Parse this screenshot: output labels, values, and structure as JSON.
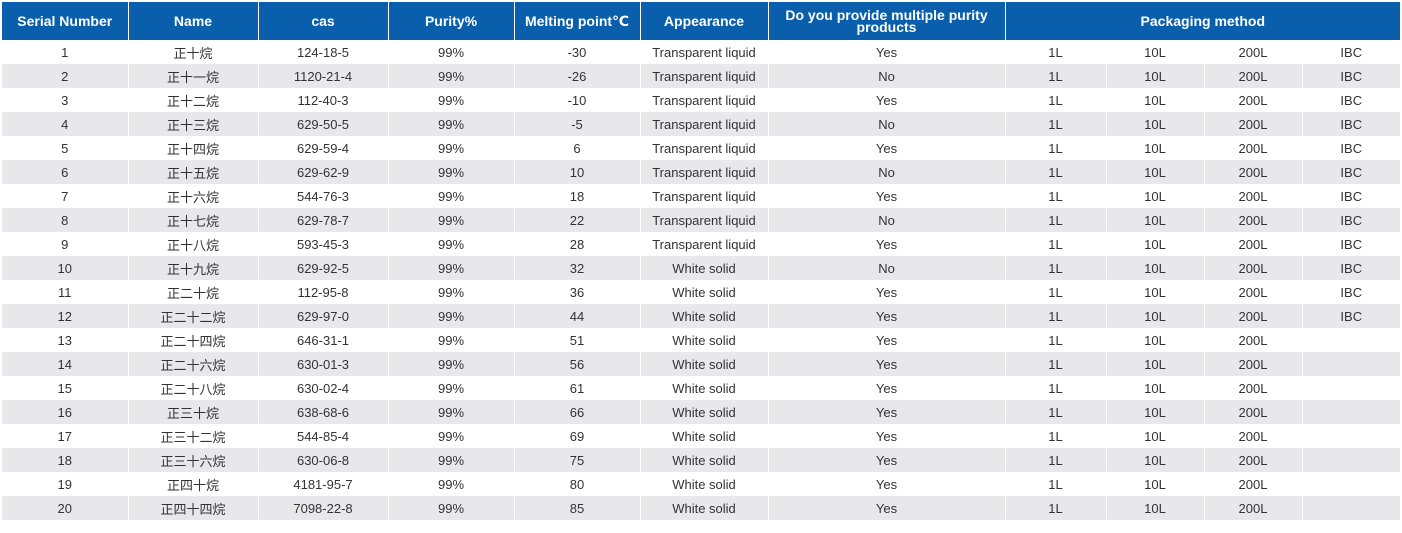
{
  "table": {
    "headers": [
      "Serial Number",
      "Name",
      "cas",
      "Purity%",
      "Melting point℃",
      "Appearance",
      "Do you provide multiple purity products",
      "Packaging method"
    ],
    "header_color": "#0a5fad",
    "stripe_color": "#e8e8ea",
    "rows": [
      {
        "serial": "1",
        "name": "正十烷",
        "cas": "124-18-5",
        "purity": "99%",
        "melting": "-30",
        "appearance": "Transparent liquid",
        "multi": "Yes",
        "pk": [
          "1L",
          "10L",
          "200L",
          "IBC"
        ]
      },
      {
        "serial": "2",
        "name": "正十一烷",
        "cas": "1120-21-4",
        "purity": "99%",
        "melting": "-26",
        "appearance": "Transparent liquid",
        "multi": "No",
        "pk": [
          "1L",
          "10L",
          "200L",
          "IBC"
        ]
      },
      {
        "serial": "3",
        "name": "正十二烷",
        "cas": "112-40-3",
        "purity": "99%",
        "melting": "-10",
        "appearance": "Transparent liquid",
        "multi": "Yes",
        "pk": [
          "1L",
          "10L",
          "200L",
          "IBC"
        ]
      },
      {
        "serial": "4",
        "name": "正十三烷",
        "cas": "629-50-5",
        "purity": "99%",
        "melting": "-5",
        "appearance": "Transparent liquid",
        "multi": "No",
        "pk": [
          "1L",
          "10L",
          "200L",
          "IBC"
        ]
      },
      {
        "serial": "5",
        "name": "正十四烷",
        "cas": "629-59-4",
        "purity": "99%",
        "melting": "6",
        "appearance": "Transparent liquid",
        "multi": "Yes",
        "pk": [
          "1L",
          "10L",
          "200L",
          "IBC"
        ]
      },
      {
        "serial": "6",
        "name": "正十五烷",
        "cas": "629-62-9",
        "purity": "99%",
        "melting": "10",
        "appearance": "Transparent liquid",
        "multi": "No",
        "pk": [
          "1L",
          "10L",
          "200L",
          "IBC"
        ]
      },
      {
        "serial": "7",
        "name": "正十六烷",
        "cas": "544-76-3",
        "purity": "99%",
        "melting": "18",
        "appearance": "Transparent liquid",
        "multi": "Yes",
        "pk": [
          "1L",
          "10L",
          "200L",
          "IBC"
        ]
      },
      {
        "serial": "8",
        "name": "正十七烷",
        "cas": "629-78-7",
        "purity": "99%",
        "melting": "22",
        "appearance": "Transparent liquid",
        "multi": "No",
        "pk": [
          "1L",
          "10L",
          "200L",
          "IBC"
        ]
      },
      {
        "serial": "9",
        "name": "正十八烷",
        "cas": "593-45-3",
        "purity": "99%",
        "melting": "28",
        "appearance": "Transparent liquid",
        "multi": "Yes",
        "pk": [
          "1L",
          "10L",
          "200L",
          "IBC"
        ]
      },
      {
        "serial": "10",
        "name": "正十九烷",
        "cas": "629-92-5",
        "purity": "99%",
        "melting": "32",
        "appearance": "White solid",
        "multi": "No",
        "pk": [
          "1L",
          "10L",
          "200L",
          "IBC"
        ]
      },
      {
        "serial": "11",
        "name": "正二十烷",
        "cas": "112-95-8",
        "purity": "99%",
        "melting": "36",
        "appearance": "White solid",
        "multi": "Yes",
        "pk": [
          "1L",
          "10L",
          "200L",
          "IBC"
        ]
      },
      {
        "serial": "12",
        "name": "正二十二烷",
        "cas": "629-97-0",
        "purity": "99%",
        "melting": "44",
        "appearance": "White solid",
        "multi": "Yes",
        "pk": [
          "1L",
          "10L",
          "200L",
          "IBC"
        ]
      },
      {
        "serial": "13",
        "name": "正二十四烷",
        "cas": "646-31-1",
        "purity": "99%",
        "melting": "51",
        "appearance": "White solid",
        "multi": "Yes",
        "pk": [
          "1L",
          "10L",
          "200L",
          ""
        ]
      },
      {
        "serial": "14",
        "name": "正二十六烷",
        "cas": "630-01-3",
        "purity": "99%",
        "melting": "56",
        "appearance": "White solid",
        "multi": "Yes",
        "pk": [
          "1L",
          "10L",
          "200L",
          ""
        ]
      },
      {
        "serial": "15",
        "name": "正二十八烷",
        "cas": "630-02-4",
        "purity": "99%",
        "melting": "61",
        "appearance": "White solid",
        "multi": "Yes",
        "pk": [
          "1L",
          "10L",
          "200L",
          ""
        ]
      },
      {
        "serial": "16",
        "name": "正三十烷",
        "cas": "638-68-6",
        "purity": "99%",
        "melting": "66",
        "appearance": "White solid",
        "multi": "Yes",
        "pk": [
          "1L",
          "10L",
          "200L",
          ""
        ]
      },
      {
        "serial": "17",
        "name": "正三十二烷",
        "cas": "544-85-4",
        "purity": "99%",
        "melting": "69",
        "appearance": "White solid",
        "multi": "Yes",
        "pk": [
          "1L",
          "10L",
          "200L",
          ""
        ]
      },
      {
        "serial": "18",
        "name": "正三十六烷",
        "cas": "630-06-8",
        "purity": "99%",
        "melting": "75",
        "appearance": "White solid",
        "multi": "Yes",
        "pk": [
          "1L",
          "10L",
          "200L",
          ""
        ]
      },
      {
        "serial": "19",
        "name": "正四十烷",
        "cas": "4181-95-7",
        "purity": "99%",
        "melting": "80",
        "appearance": "White solid",
        "multi": "Yes",
        "pk": [
          "1L",
          "10L",
          "200L",
          ""
        ]
      },
      {
        "serial": "20",
        "name": "正四十四烷",
        "cas": "7098-22-8",
        "purity": "99%",
        "melting": "85",
        "appearance": "White solid",
        "multi": "Yes",
        "pk": [
          "1L",
          "10L",
          "200L",
          ""
        ]
      }
    ]
  }
}
